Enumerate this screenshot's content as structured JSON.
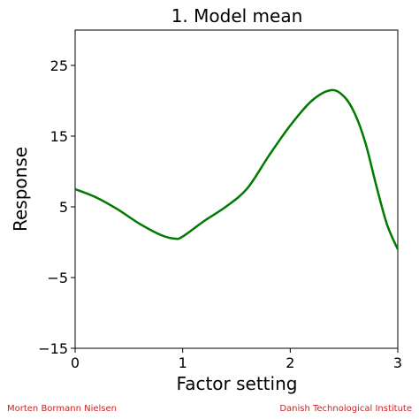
{
  "chart_data": {
    "type": "line",
    "title": "1. Model mean",
    "xlabel": "Factor setting",
    "ylabel": "Response",
    "xlim": [
      0,
      3
    ],
    "ylim": [
      -15,
      30
    ],
    "xticks": [
      0,
      1,
      2,
      3
    ],
    "xtick_labels": [
      "0",
      "1",
      "2",
      "3"
    ],
    "yticks": [
      -15,
      -5,
      5,
      15,
      25
    ],
    "ytick_labels": [
      "−15",
      "−5",
      "5",
      "15",
      "25"
    ],
    "grid": false,
    "series": [
      {
        "color": "#007a00",
        "x": [
          0,
          0.2,
          0.4,
          0.6,
          0.8,
          0.93,
          1.0,
          1.2,
          1.4,
          1.6,
          1.8,
          2.0,
          2.2,
          2.38,
          2.5,
          2.6,
          2.7,
          2.8,
          2.9,
          3.0
        ],
        "y": [
          7.5,
          6.3,
          4.6,
          2.6,
          1.0,
          0.5,
          0.8,
          3.0,
          5.0,
          7.6,
          12.2,
          16.5,
          20.0,
          21.5,
          20.6,
          18.2,
          14.0,
          8.0,
          2.5,
          -1.0
        ]
      }
    ]
  },
  "footer": {
    "left": "Morten Bormann Nielsen",
    "right": "Danish Technological Institute"
  }
}
